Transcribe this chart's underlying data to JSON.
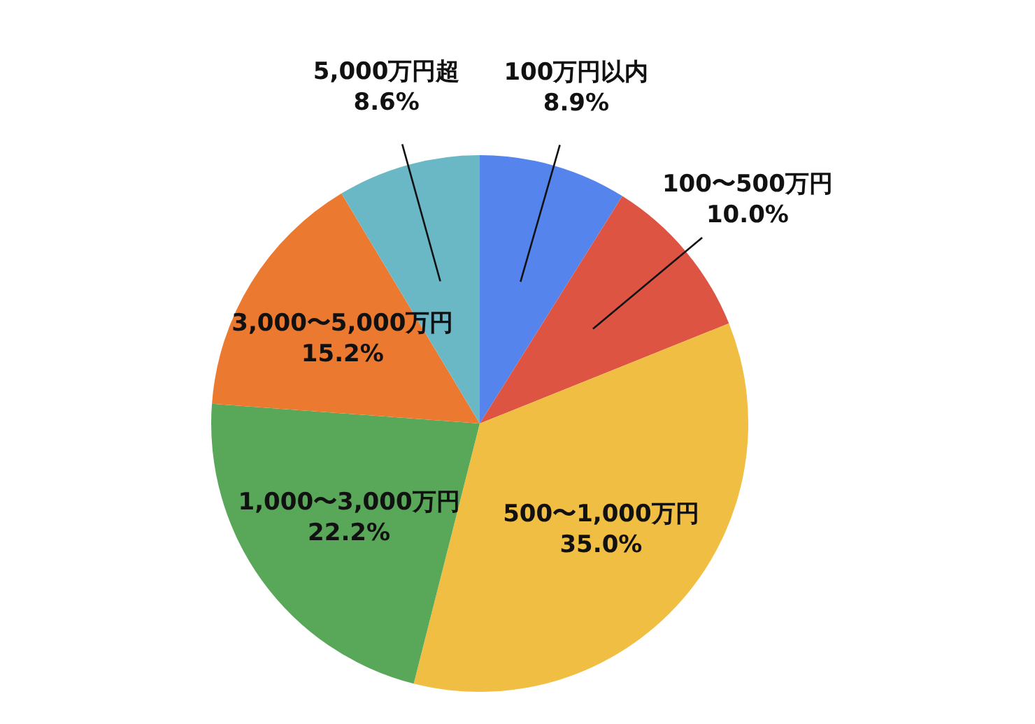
{
  "chart_data": {
    "type": "pie",
    "categories": [
      "100万円以内",
      "100〜500万円",
      "500〜1,000万円",
      "1,000〜3,000万円",
      "3,000〜5,000万円",
      "5,000万円超"
    ],
    "values": [
      8.9,
      10.0,
      35.0,
      22.2,
      15.2,
      8.6
    ],
    "colors": [
      "#5584ec",
      "#dd5443",
      "#f0be42",
      "#59a85a",
      "#ec7930",
      "#6ab7c5"
    ],
    "value_labels": [
      "8.9%",
      "10.0%",
      "35.0%",
      "22.2%",
      "15.2%",
      "8.6%"
    ],
    "legend": false
  }
}
